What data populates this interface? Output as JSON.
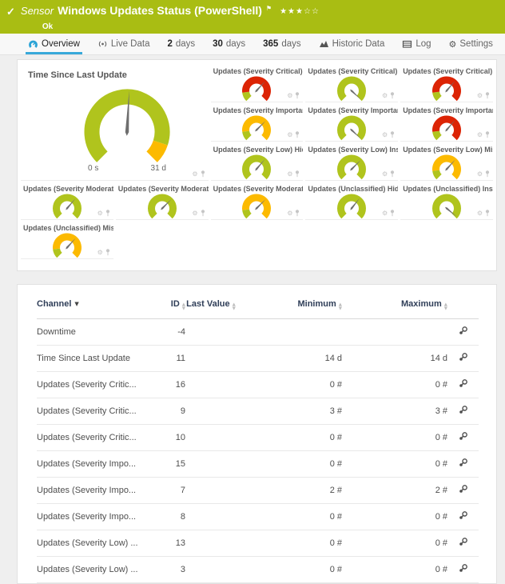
{
  "header": {
    "sensor_label": "Sensor",
    "title": "Windows Updates Status (PowerShell)",
    "status": "Ok",
    "rating": "★★★☆☆"
  },
  "icons": {
    "check": "✓",
    "flag": "⚑",
    "gear": "⚙",
    "sort_active": "▼",
    "sort_up": "▲",
    "sort_down": "▼"
  },
  "colors": {
    "green": "#b0c41d",
    "yellow": "#fcba00",
    "red": "#dc2405",
    "needle": "#6e6e6e",
    "accent": "#38a9da",
    "header_green": "#a9bd13"
  },
  "tabs": [
    {
      "id": "overview",
      "icon": "gauge-icon",
      "label": "Overview",
      "active": true
    },
    {
      "id": "live-data",
      "icon": "live-icon",
      "label": "Live Data"
    },
    {
      "id": "2-days",
      "num": "2",
      "label": "days"
    },
    {
      "id": "30-days",
      "num": "30",
      "label": "days"
    },
    {
      "id": "365-days",
      "num": "365",
      "label": "days"
    },
    {
      "id": "historic-data",
      "icon": "chart-icon",
      "label": "Historic Data"
    },
    {
      "id": "log",
      "icon": "log-icon",
      "label": "Log"
    },
    {
      "id": "settings",
      "icon": "settings-icon",
      "label": "Settings"
    }
  ],
  "overview": {
    "main_gauge": {
      "title": "Time Since Last Update",
      "min_label": "0 s",
      "max_label": "31 d",
      "needle_angle": 3,
      "segments": [
        {
          "color": "green",
          "sweep": 243
        },
        {
          "color": "yellow",
          "sweep": 27
        }
      ]
    },
    "small_gauges": [
      {
        "label": "Updates (Severity Critical) Hi...",
        "needle_angle": 42,
        "segments": [
          {
            "color": "green",
            "sweep": 38
          },
          {
            "color": "red",
            "sweep": 232
          }
        ]
      },
      {
        "label": "Updates (Severity Critical) Ins...",
        "needle_angle": 133,
        "segments": [
          {
            "color": "green",
            "sweep": 270
          }
        ]
      },
      {
        "label": "Updates (Severity Critical) Mi...",
        "needle_angle": 40,
        "segments": [
          {
            "color": "green",
            "sweep": 38
          },
          {
            "color": "red",
            "sweep": 232
          }
        ]
      },
      {
        "label": "Updates (Severity Important) ...",
        "needle_angle": 45,
        "segments": [
          {
            "color": "green",
            "sweep": 38
          },
          {
            "color": "yellow",
            "sweep": 232
          }
        ]
      },
      {
        "label": "Updates (Severity Important) ...",
        "needle_angle": 133,
        "segments": [
          {
            "color": "green",
            "sweep": 270
          }
        ]
      },
      {
        "label": "Updates (Severity Important) ...",
        "needle_angle": 40,
        "segments": [
          {
            "color": "green",
            "sweep": 38
          },
          {
            "color": "red",
            "sweep": 232
          }
        ]
      },
      {
        "label": "Updates (Severity Low) Hidden",
        "needle_angle": 40,
        "segments": [
          {
            "color": "green",
            "sweep": 270
          }
        ]
      },
      {
        "label": "Updates (Severity Low) Install...",
        "needle_angle": 45,
        "segments": [
          {
            "color": "green",
            "sweep": 270
          }
        ]
      },
      {
        "label": "Updates (Severity Low) Missi...",
        "needle_angle": 42,
        "segments": [
          {
            "color": "green",
            "sweep": 38
          },
          {
            "color": "yellow",
            "sweep": 232
          }
        ]
      },
      {
        "label": "Updates (Severity Moderate) ...",
        "needle_angle": 40,
        "segments": [
          {
            "color": "green",
            "sweep": 270
          }
        ]
      },
      {
        "label": "Updates (Severity Moderate) I...",
        "needle_angle": 45,
        "segments": [
          {
            "color": "green",
            "sweep": 270
          }
        ]
      },
      {
        "label": "Updates (Severity Moderate) ...",
        "needle_angle": 45,
        "segments": [
          {
            "color": "green",
            "sweep": 38
          },
          {
            "color": "yellow",
            "sweep": 232
          }
        ]
      },
      {
        "label": "Updates (Unclassified) Hidden",
        "needle_angle": 38,
        "segments": [
          {
            "color": "green",
            "sweep": 270
          }
        ]
      },
      {
        "label": "Updates (Unclassified) Install...",
        "needle_angle": 130,
        "segments": [
          {
            "color": "green",
            "sweep": 270
          }
        ]
      },
      {
        "label": "Updates (Unclassified) Missing",
        "needle_angle": 42,
        "segments": [
          {
            "color": "green",
            "sweep": 38
          },
          {
            "color": "yellow",
            "sweep": 232
          }
        ]
      }
    ]
  },
  "channel_table": {
    "headers": {
      "channel": "Channel",
      "id": "ID",
      "last_value": "Last Value",
      "minimum": "Minimum",
      "maximum": "Maximum"
    },
    "rows": [
      {
        "channel": "Downtime",
        "id": "-4",
        "last": "",
        "min": "",
        "max": ""
      },
      {
        "channel": "Time Since Last Update",
        "id": "11",
        "last": "",
        "min": "14 d",
        "max": "14 d"
      },
      {
        "channel": "Updates (Severity Critic...",
        "id": "16",
        "last": "",
        "min": "0 #",
        "max": "0 #"
      },
      {
        "channel": "Updates (Severity Critic...",
        "id": "9",
        "last": "",
        "min": "3 #",
        "max": "3 #"
      },
      {
        "channel": "Updates (Severity Critic...",
        "id": "10",
        "last": "",
        "min": "0 #",
        "max": "0 #"
      },
      {
        "channel": "Updates (Severity Impo...",
        "id": "15",
        "last": "",
        "min": "0 #",
        "max": "0 #"
      },
      {
        "channel": "Updates (Severity Impo...",
        "id": "7",
        "last": "",
        "min": "2 #",
        "max": "2 #"
      },
      {
        "channel": "Updates (Severity Impo...",
        "id": "8",
        "last": "",
        "min": "0 #",
        "max": "0 #"
      },
      {
        "channel": "Updates (Severity Low) ...",
        "id": "13",
        "last": "",
        "min": "0 #",
        "max": "0 #"
      },
      {
        "channel": "Updates (Severity Low) ...",
        "id": "3",
        "last": "",
        "min": "0 #",
        "max": "0 #"
      }
    ]
  }
}
